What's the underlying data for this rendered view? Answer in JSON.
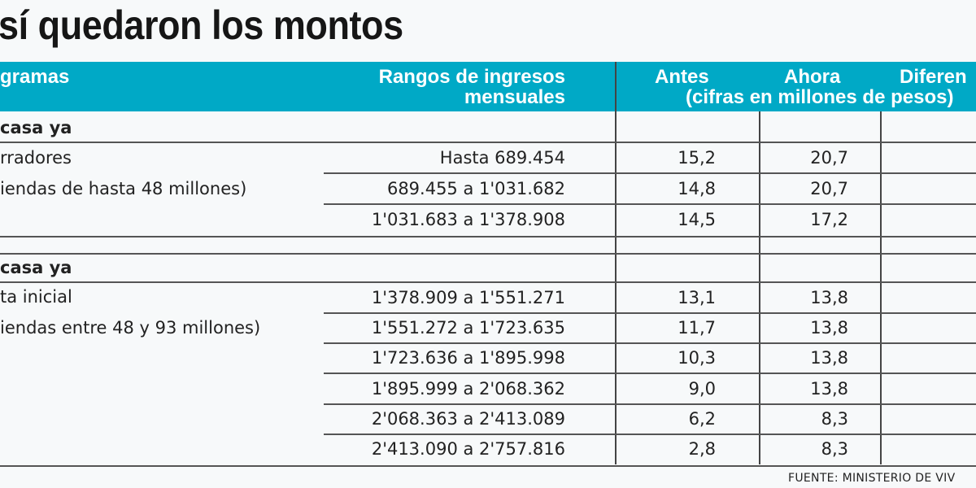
{
  "title": "sí quedaron los montos",
  "header": {
    "programas": "gramas",
    "rangos_line1": "Rangos de ingresos",
    "rangos_line2": "mensuales",
    "antes": "Antes",
    "ahora": "Ahora",
    "diferencia": "Diferen",
    "units": "(cifras en millones de pesos)"
  },
  "sections": [
    {
      "name": "casa ya",
      "sub1": "rradores",
      "sub2": "iendas de hasta 48 millones)",
      "rows": [
        {
          "range": "Hasta 689.454",
          "antes": "15,2",
          "ahora": "20,7"
        },
        {
          "range": "689.455 a 1'031.682",
          "antes": "14,8",
          "ahora": "20,7"
        },
        {
          "range": "1'031.683 a 1'378.908",
          "antes": "14,5",
          "ahora": "17,2"
        }
      ]
    },
    {
      "name": "casa ya",
      "sub1": "ta inicial",
      "sub2": "iendas entre 48 y 93 millones)",
      "rows": [
        {
          "range": "1'378.909 a 1'551.271",
          "antes": "13,1",
          "ahora": "13,8"
        },
        {
          "range": "1'551.272 a 1'723.635",
          "antes": "11,7",
          "ahora": "13,8"
        },
        {
          "range": "1'723.636 a 1'895.998",
          "antes": "10,3",
          "ahora": "13,8"
        },
        {
          "range": "1'895.999 a 2'068.362",
          "antes": "9,0",
          "ahora": "13,8"
        },
        {
          "range": "2'068.363 a 2'413.089",
          "antes": "6,2",
          "ahora": "8,3"
        },
        {
          "range": "2'413.090 a 2'757.816",
          "antes": "2,8",
          "ahora": "8,3"
        }
      ]
    }
  ],
  "source": "FUENTE: MINISTERIO DE VIV",
  "colors": {
    "header_bg": "#00a9c6",
    "header_text": "#ffffff"
  }
}
